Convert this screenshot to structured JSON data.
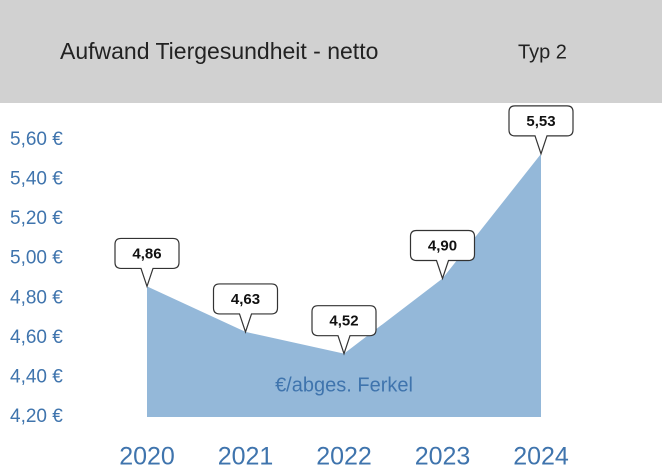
{
  "chart_data": {
    "type": "area",
    "title": "Aufwand Tiergesundheit - netto",
    "subtitle": "Typ 2",
    "annotation": "€/abges. Ferkel",
    "categories": [
      "2020",
      "2021",
      "2022",
      "2023",
      "2024"
    ],
    "values": [
      4.86,
      4.63,
      4.52,
      4.9,
      5.53
    ],
    "value_labels": [
      "4,86",
      "4,63",
      "4,52",
      "4,90",
      "5,53"
    ],
    "color": "#94b8d9",
    "ylim": [
      4.2,
      5.6
    ],
    "yticks": [
      {
        "value": 4.2,
        "label": "4,20 €"
      },
      {
        "value": 4.4,
        "label": "4,40 €"
      },
      {
        "value": 4.6,
        "label": "4,60 €"
      },
      {
        "value": 4.8,
        "label": "4,80 €"
      },
      {
        "value": 5.0,
        "label": "5,00 €"
      },
      {
        "value": 5.2,
        "label": "5,20 €"
      },
      {
        "value": 5.4,
        "label": "5,40 €"
      },
      {
        "value": 5.6,
        "label": "5,60 €"
      }
    ]
  }
}
